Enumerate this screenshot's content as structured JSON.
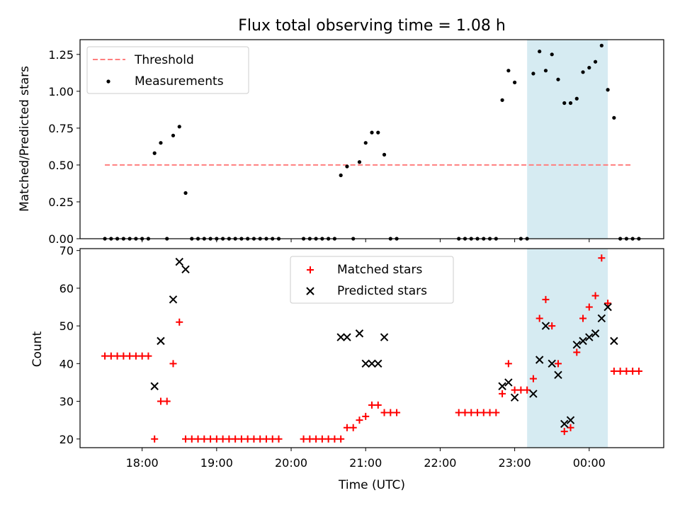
{
  "chart_data": [
    {
      "type": "scatter",
      "title": "Flux total observing time = 1.08 h",
      "xlabel": "",
      "ylabel": "Matched/Predicted stars",
      "ylim": [
        0,
        1.35
      ],
      "xlim": [
        "17:10",
        "01:00"
      ],
      "yticks": [
        0.0,
        0.25,
        0.5,
        0.75,
        1.0,
        1.25
      ],
      "ytick_labels": [
        "0.00",
        "0.25",
        "0.50",
        "0.75",
        "1.00",
        "1.25"
      ],
      "grid": false,
      "legend_position": "top-left",
      "legend": [
        "Threshold",
        "Measurements"
      ],
      "highlight_band": {
        "start": "23:10",
        "end": "00:15",
        "color": "#add8e6"
      },
      "series": [
        {
          "name": "Threshold",
          "kind": "line",
          "style": "dashed",
          "color": "#ff7f7f",
          "value": 0.5,
          "x_range": [
            "17:30",
            "00:35"
          ]
        },
        {
          "name": "Measurements",
          "kind": "points",
          "color": "#000000",
          "points": [
            [
              "17:30",
              0
            ],
            [
              "17:35",
              0
            ],
            [
              "17:40",
              0
            ],
            [
              "17:45",
              0
            ],
            [
              "17:50",
              0
            ],
            [
              "17:55",
              0
            ],
            [
              "18:00",
              0
            ],
            [
              "18:05",
              0
            ],
            [
              "18:10",
              0.58
            ],
            [
              "18:15",
              0.65
            ],
            [
              "18:20",
              0
            ],
            [
              "18:25",
              0.7
            ],
            [
              "18:30",
              0.76
            ],
            [
              "18:35",
              0.31
            ],
            [
              "18:40",
              0
            ],
            [
              "18:45",
              0
            ],
            [
              "18:50",
              0
            ],
            [
              "18:55",
              0
            ],
            [
              "19:00",
              0
            ],
            [
              "19:05",
              0
            ],
            [
              "19:10",
              0
            ],
            [
              "19:15",
              0
            ],
            [
              "19:20",
              0
            ],
            [
              "19:25",
              0
            ],
            [
              "19:30",
              0
            ],
            [
              "19:35",
              0
            ],
            [
              "19:40",
              0
            ],
            [
              "19:45",
              0
            ],
            [
              "19:50",
              0
            ],
            [
              "20:10",
              0
            ],
            [
              "20:15",
              0
            ],
            [
              "20:20",
              0
            ],
            [
              "20:25",
              0
            ],
            [
              "20:30",
              0
            ],
            [
              "20:35",
              0
            ],
            [
              "20:40",
              0.43
            ],
            [
              "20:45",
              0.49
            ],
            [
              "20:50",
              0
            ],
            [
              "20:55",
              0.52
            ],
            [
              "21:00",
              0.65
            ],
            [
              "21:05",
              0.72
            ],
            [
              "21:10",
              0.72
            ],
            [
              "21:15",
              0.57
            ],
            [
              "21:20",
              0
            ],
            [
              "21:25",
              0
            ],
            [
              "22:15",
              0
            ],
            [
              "22:20",
              0
            ],
            [
              "22:25",
              0
            ],
            [
              "22:30",
              0
            ],
            [
              "22:35",
              0
            ],
            [
              "22:40",
              0
            ],
            [
              "22:45",
              0
            ],
            [
              "22:50",
              0.94
            ],
            [
              "22:55",
              1.14
            ],
            [
              "23:00",
              1.06
            ],
            [
              "23:05",
              0
            ],
            [
              "23:10",
              0
            ],
            [
              "23:15",
              1.12
            ],
            [
              "23:20",
              1.27
            ],
            [
              "23:25",
              1.14
            ],
            [
              "23:30",
              1.25
            ],
            [
              "23:35",
              1.08
            ],
            [
              "23:40",
              0.92
            ],
            [
              "23:45",
              0.92
            ],
            [
              "23:50",
              0.95
            ],
            [
              "23:55",
              1.13
            ],
            [
              "00:00",
              1.16
            ],
            [
              "00:05",
              1.2
            ],
            [
              "00:10",
              1.31
            ],
            [
              "00:15",
              1.01
            ],
            [
              "00:20",
              0.82
            ],
            [
              "00:25",
              0
            ],
            [
              "00:30",
              0
            ],
            [
              "00:35",
              0
            ],
            [
              "00:40",
              0
            ]
          ]
        }
      ]
    },
    {
      "type": "scatter",
      "title": "",
      "xlabel": "Time (UTC)",
      "ylabel": "Count",
      "ylim": [
        17.7,
        70.5
      ],
      "xlim": [
        "17:10",
        "01:00"
      ],
      "yticks": [
        20,
        30,
        40,
        50,
        60,
        70
      ],
      "ytick_labels": [
        "20",
        "30",
        "40",
        "50",
        "60",
        "70"
      ],
      "xticks": [
        "18:00",
        "19:00",
        "20:00",
        "21:00",
        "22:00",
        "23:00",
        "00:00"
      ],
      "xtick_labels": [
        "18:00",
        "19:00",
        "20:00",
        "21:00",
        "22:00",
        "23:00",
        "00:00"
      ],
      "grid": false,
      "legend_position": "top-center",
      "legend": [
        "Matched stars",
        "Predicted stars"
      ],
      "highlight_band": {
        "start": "23:10",
        "end": "00:15",
        "color": "#add8e6"
      },
      "series": [
        {
          "name": "Matched stars",
          "marker": "+",
          "color": "#ff0000",
          "points": [
            [
              "17:30",
              42
            ],
            [
              "17:35",
              42
            ],
            [
              "17:40",
              42
            ],
            [
              "17:45",
              42
            ],
            [
              "17:50",
              42
            ],
            [
              "17:55",
              42
            ],
            [
              "18:00",
              42
            ],
            [
              "18:05",
              42
            ],
            [
              "18:10",
              20
            ],
            [
              "18:15",
              30
            ],
            [
              "18:20",
              30
            ],
            [
              "18:25",
              40
            ],
            [
              "18:30",
              51
            ],
            [
              "18:35",
              20
            ],
            [
              "18:40",
              20
            ],
            [
              "18:45",
              20
            ],
            [
              "18:50",
              20
            ],
            [
              "18:55",
              20
            ],
            [
              "19:00",
              20
            ],
            [
              "19:05",
              20
            ],
            [
              "19:10",
              20
            ],
            [
              "19:15",
              20
            ],
            [
              "19:20",
              20
            ],
            [
              "19:25",
              20
            ],
            [
              "19:30",
              20
            ],
            [
              "19:35",
              20
            ],
            [
              "19:40",
              20
            ],
            [
              "19:45",
              20
            ],
            [
              "19:50",
              20
            ],
            [
              "20:10",
              20
            ],
            [
              "20:15",
              20
            ],
            [
              "20:20",
              20
            ],
            [
              "20:25",
              20
            ],
            [
              "20:30",
              20
            ],
            [
              "20:35",
              20
            ],
            [
              "20:40",
              20
            ],
            [
              "20:45",
              23
            ],
            [
              "20:50",
              23
            ],
            [
              "20:55",
              25
            ],
            [
              "21:00",
              26
            ],
            [
              "21:05",
              29
            ],
            [
              "21:10",
              29
            ],
            [
              "21:15",
              27
            ],
            [
              "21:20",
              27
            ],
            [
              "21:25",
              27
            ],
            [
              "22:15",
              27
            ],
            [
              "22:20",
              27
            ],
            [
              "22:25",
              27
            ],
            [
              "22:30",
              27
            ],
            [
              "22:35",
              27
            ],
            [
              "22:40",
              27
            ],
            [
              "22:45",
              27
            ],
            [
              "22:50",
              32
            ],
            [
              "22:55",
              40
            ],
            [
              "23:00",
              33
            ],
            [
              "23:05",
              33
            ],
            [
              "23:10",
              33
            ],
            [
              "23:15",
              36
            ],
            [
              "23:20",
              52
            ],
            [
              "23:25",
              57
            ],
            [
              "23:30",
              50
            ],
            [
              "23:35",
              40
            ],
            [
              "23:40",
              22
            ],
            [
              "23:45",
              23
            ],
            [
              "23:50",
              43
            ],
            [
              "23:55",
              52
            ],
            [
              "00:00",
              55
            ],
            [
              "00:05",
              58
            ],
            [
              "00:10",
              68
            ],
            [
              "00:15",
              56
            ],
            [
              "00:20",
              38
            ],
            [
              "00:25",
              38
            ],
            [
              "00:30",
              38
            ],
            [
              "00:35",
              38
            ],
            [
              "00:40",
              38
            ]
          ]
        },
        {
          "name": "Predicted stars",
          "marker": "x",
          "color": "#000000",
          "points": [
            [
              "18:10",
              34
            ],
            [
              "18:15",
              46
            ],
            [
              "18:25",
              57
            ],
            [
              "18:30",
              67
            ],
            [
              "18:35",
              65
            ],
            [
              "20:40",
              47
            ],
            [
              "20:45",
              47
            ],
            [
              "20:55",
              48
            ],
            [
              "21:00",
              40
            ],
            [
              "21:05",
              40
            ],
            [
              "21:10",
              40
            ],
            [
              "21:15",
              47
            ],
            [
              "22:50",
              34
            ],
            [
              "22:55",
              35
            ],
            [
              "23:00",
              31
            ],
            [
              "23:15",
              32
            ],
            [
              "23:20",
              41
            ],
            [
              "23:25",
              50
            ],
            [
              "23:30",
              40
            ],
            [
              "23:35",
              37
            ],
            [
              "23:40",
              24
            ],
            [
              "23:45",
              25
            ],
            [
              "23:50",
              45
            ],
            [
              "23:55",
              46
            ],
            [
              "00:00",
              47
            ],
            [
              "00:05",
              48
            ],
            [
              "00:10",
              52
            ],
            [
              "00:15",
              55
            ],
            [
              "00:20",
              46
            ]
          ]
        }
      ]
    }
  ]
}
